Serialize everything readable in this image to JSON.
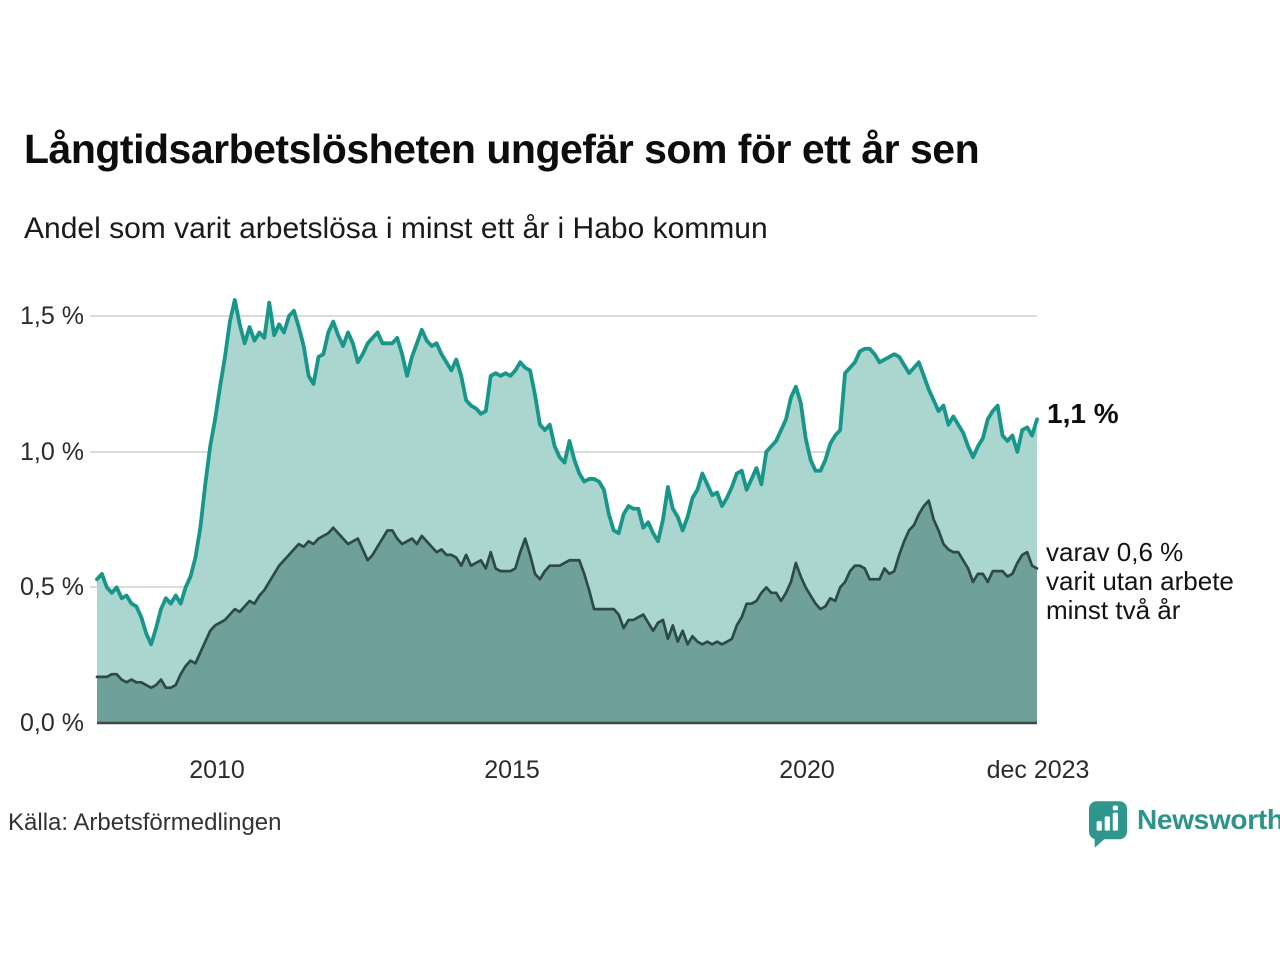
{
  "header": {
    "title": "Långtidsarbetslösheten ungefär som för ett år sen",
    "subtitle": "Andel som varit arbetslösa i minst ett år i Habo kommun"
  },
  "chart_data": {
    "type": "area",
    "unit": "%",
    "x_start": "2008-01",
    "x_end": "2023-12",
    "frequency": "monthly",
    "ylim": [
      0,
      1.65
    ],
    "grid": "horizontal",
    "y_tick_values": [
      0.0,
      0.5,
      1.0,
      1.5
    ],
    "y_tick_labels": [
      "0,0 %",
      "0,5 %",
      "1,0 %",
      "1,5 %"
    ],
    "x_tick_labels": [
      "2010",
      "2015",
      "2020",
      "dec 2023"
    ],
    "x_tick_month_indices": [
      24,
      84,
      144,
      191
    ],
    "colors": {
      "line_1yr": "#18968a",
      "fill_1yr": "#abd6cf",
      "line_2yr": "#2d4a45",
      "fill_2yr": "#70a09a",
      "gridline": "#dcdcdc"
    },
    "series": [
      {
        "name": "Andel arbetslösa minst ett år",
        "latest_value": 1.1,
        "values": [
          0.53,
          0.55,
          0.5,
          0.48,
          0.5,
          0.46,
          0.47,
          0.44,
          0.43,
          0.39,
          0.33,
          0.29,
          0.35,
          0.42,
          0.46,
          0.44,
          0.47,
          0.44,
          0.5,
          0.54,
          0.61,
          0.72,
          0.88,
          1.02,
          1.12,
          1.24,
          1.35,
          1.48,
          1.56,
          1.47,
          1.4,
          1.46,
          1.41,
          1.44,
          1.42,
          1.55,
          1.43,
          1.47,
          1.44,
          1.5,
          1.52,
          1.46,
          1.39,
          1.28,
          1.25,
          1.35,
          1.36,
          1.44,
          1.48,
          1.43,
          1.39,
          1.44,
          1.4,
          1.33,
          1.36,
          1.4,
          1.42,
          1.44,
          1.4,
          1.4,
          1.4,
          1.42,
          1.36,
          1.28,
          1.35,
          1.4,
          1.45,
          1.41,
          1.39,
          1.4,
          1.36,
          1.33,
          1.3,
          1.34,
          1.28,
          1.19,
          1.17,
          1.16,
          1.14,
          1.15,
          1.28,
          1.29,
          1.28,
          1.29,
          1.28,
          1.3,
          1.33,
          1.31,
          1.3,
          1.21,
          1.1,
          1.08,
          1.1,
          1.02,
          0.98,
          0.96,
          1.04,
          0.97,
          0.92,
          0.89,
          0.9,
          0.9,
          0.89,
          0.86,
          0.77,
          0.71,
          0.7,
          0.77,
          0.8,
          0.79,
          0.79,
          0.72,
          0.74,
          0.7,
          0.67,
          0.75,
          0.87,
          0.79,
          0.76,
          0.71,
          0.76,
          0.83,
          0.86,
          0.92,
          0.88,
          0.84,
          0.85,
          0.8,
          0.83,
          0.87,
          0.92,
          0.93,
          0.86,
          0.9,
          0.94,
          0.88,
          1.0,
          1.02,
          1.04,
          1.08,
          1.12,
          1.2,
          1.24,
          1.18,
          1.05,
          0.97,
          0.93,
          0.93,
          0.97,
          1.03,
          1.06,
          1.08,
          1.29,
          1.31,
          1.33,
          1.37,
          1.38,
          1.38,
          1.36,
          1.33,
          1.34,
          1.35,
          1.36,
          1.35,
          1.32,
          1.29,
          1.31,
          1.33,
          1.28,
          1.23,
          1.19,
          1.15,
          1.17,
          1.1,
          1.13,
          1.1,
          1.07,
          1.02,
          0.98,
          1.02,
          1.05,
          1.12,
          1.15,
          1.17,
          1.06,
          1.04,
          1.06,
          1.0,
          1.08,
          1.09,
          1.06,
          1.12
        ]
      },
      {
        "name": "varav utan arbete minst två år",
        "latest_value": 0.6,
        "values": [
          0.17,
          0.17,
          0.17,
          0.18,
          0.18,
          0.16,
          0.15,
          0.16,
          0.15,
          0.15,
          0.14,
          0.13,
          0.14,
          0.16,
          0.13,
          0.13,
          0.14,
          0.18,
          0.21,
          0.23,
          0.22,
          0.26,
          0.3,
          0.34,
          0.36,
          0.37,
          0.38,
          0.4,
          0.42,
          0.41,
          0.43,
          0.45,
          0.44,
          0.47,
          0.49,
          0.52,
          0.55,
          0.58,
          0.6,
          0.62,
          0.64,
          0.66,
          0.65,
          0.67,
          0.66,
          0.68,
          0.69,
          0.7,
          0.72,
          0.7,
          0.68,
          0.66,
          0.67,
          0.68,
          0.64,
          0.6,
          0.62,
          0.65,
          0.68,
          0.71,
          0.71,
          0.68,
          0.66,
          0.67,
          0.68,
          0.66,
          0.69,
          0.67,
          0.65,
          0.63,
          0.64,
          0.62,
          0.62,
          0.61,
          0.58,
          0.62,
          0.58,
          0.59,
          0.6,
          0.57,
          0.63,
          0.57,
          0.56,
          0.56,
          0.56,
          0.57,
          0.63,
          0.68,
          0.62,
          0.55,
          0.53,
          0.56,
          0.58,
          0.58,
          0.58,
          0.59,
          0.6,
          0.6,
          0.6,
          0.55,
          0.49,
          0.42,
          0.42,
          0.42,
          0.42,
          0.42,
          0.4,
          0.35,
          0.38,
          0.38,
          0.39,
          0.4,
          0.37,
          0.34,
          0.37,
          0.38,
          0.31,
          0.36,
          0.3,
          0.34,
          0.29,
          0.32,
          0.3,
          0.29,
          0.3,
          0.29,
          0.3,
          0.29,
          0.3,
          0.31,
          0.36,
          0.39,
          0.44,
          0.44,
          0.45,
          0.48,
          0.5,
          0.48,
          0.48,
          0.45,
          0.48,
          0.52,
          0.59,
          0.54,
          0.5,
          0.47,
          0.44,
          0.42,
          0.43,
          0.46,
          0.45,
          0.5,
          0.52,
          0.56,
          0.58,
          0.58,
          0.57,
          0.53,
          0.53,
          0.53,
          0.57,
          0.55,
          0.56,
          0.62,
          0.67,
          0.71,
          0.73,
          0.77,
          0.8,
          0.82,
          0.75,
          0.71,
          0.66,
          0.64,
          0.63,
          0.63,
          0.6,
          0.57,
          0.52,
          0.55,
          0.55,
          0.52,
          0.56,
          0.56,
          0.56,
          0.54,
          0.55,
          0.59,
          0.62,
          0.63,
          0.58,
          0.57
        ]
      }
    ],
    "annotations": {
      "latest_value_label": "1,1 %",
      "secondary_label_lines": [
        "varav 0,6 %",
        "varit utan arbete",
        "minst två år"
      ]
    }
  },
  "footer": {
    "source": "Källa: Arbetsförmedlingen",
    "brand": "Newsworthy"
  }
}
